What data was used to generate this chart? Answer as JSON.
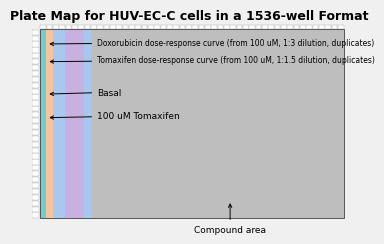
{
  "title": "Plate Map for HUV-EC-C cells in a 1536-well Format",
  "title_fontsize": 9,
  "fig_bg": "#f0f0f0",
  "plate_bg": "#bebebe",
  "n_rows": 32,
  "n_cols": 48,
  "strip_specs": [
    [
      0,
      1,
      "#6ecece"
    ],
    [
      1,
      2,
      "#f5c49a"
    ],
    [
      2,
      4,
      "#a8c8f0"
    ],
    [
      4,
      7,
      "#c8b0e0"
    ],
    [
      7,
      8,
      "#a8c8f0"
    ]
  ],
  "row_box_color": "#e0e0e0",
  "col_box_color": "#e0e0e0",
  "annot_doxo": "Doxorubicin dose-response curve (from 100 uM, 1:3 dilution, duplicates)",
  "annot_toma": "Tomaxifen dose-response curve (from 100 uM, 1:1.5 dilution, duplicates)",
  "annot_basal": "Basal",
  "annot_toma2": "100 uM Tomaxifen",
  "annot_compound": "Compound area",
  "fontsize_small": 5.5,
  "fontsize_med": 6.5
}
